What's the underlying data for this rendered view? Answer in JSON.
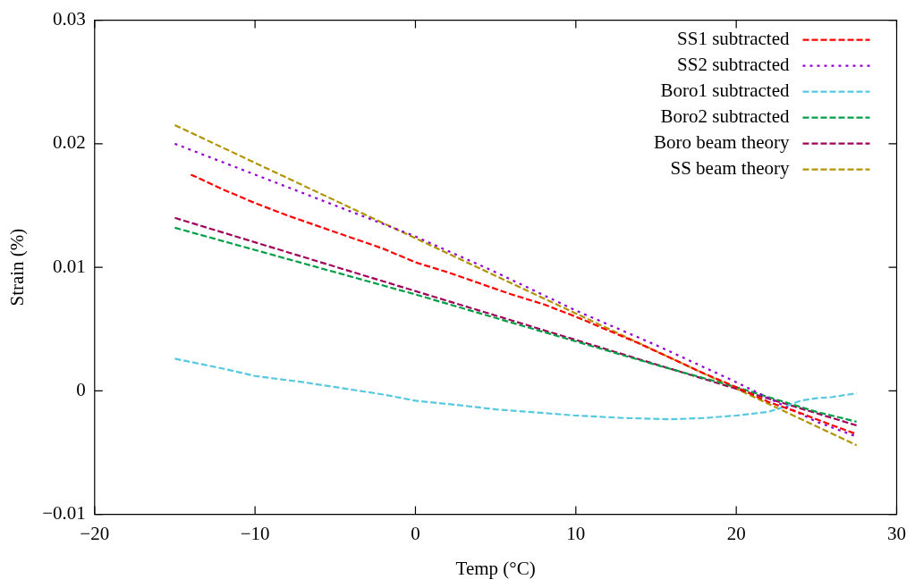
{
  "chart_data": {
    "type": "line",
    "xlabel": "Temp (°C)",
    "ylabel": "Strain (%)",
    "xlim": [
      -20,
      30
    ],
    "xticks": [
      -20,
      -10,
      0,
      10,
      20,
      30
    ],
    "ylim": [
      -0.01,
      0.03
    ],
    "yticks": [
      -0.01,
      0,
      0.01,
      0.02,
      0.03
    ],
    "grid": false,
    "legend": "top right",
    "marker": "none",
    "series": [
      {
        "name": "SS1 subtracted",
        "color": "#ff0000",
        "line_style": "dashed",
        "x": [
          -14,
          -12,
          -10,
          -8,
          -6,
          -4,
          -2,
          0,
          2,
          4,
          6,
          8,
          10,
          12,
          14,
          16,
          18,
          20,
          22,
          24,
          26,
          27.5
        ],
        "values": [
          0.0175,
          0.0163,
          0.0152,
          0.0142,
          0.0133,
          0.0124,
          0.0115,
          0.0104,
          0.0096,
          0.0087,
          0.0078,
          0.007,
          0.006,
          0.0049,
          0.0038,
          0.0026,
          0.0014,
          0.0003,
          -0.0009,
          -0.0018,
          -0.0028,
          -0.0035
        ]
      },
      {
        "name": "SS2 subtracted",
        "color": "#9400d3",
        "line_style": "dotted",
        "x": [
          -15,
          -10,
          -5,
          0,
          5,
          10,
          15,
          20,
          25,
          27.5
        ],
        "values": [
          0.02,
          0.0175,
          0.015,
          0.0125,
          0.0096,
          0.0065,
          0.0037,
          0.0007,
          -0.0025,
          -0.0037
        ]
      },
      {
        "name": "Boro1 subtracted",
        "color": "#56c8e0",
        "line_style": "dashed",
        "x": [
          -15,
          -12,
          -10,
          -7,
          -5,
          -2,
          0,
          3,
          5,
          8,
          10,
          13,
          16,
          18,
          20,
          22,
          23,
          24,
          25,
          26,
          27,
          27.5
        ],
        "values": [
          0.0026,
          0.0018,
          0.0012,
          0.0007,
          0.0003,
          -0.0003,
          -0.0008,
          -0.0012,
          -0.0015,
          -0.0018,
          -0.002,
          -0.0022,
          -0.0023,
          -0.0022,
          -0.002,
          -0.0017,
          -0.0013,
          -0.0008,
          -0.0006,
          -0.0005,
          -0.0003,
          -0.0002
        ]
      },
      {
        "name": "Boro2 subtracted",
        "color": "#009e45",
        "line_style": "dashed",
        "x": [
          -15,
          -10,
          -5,
          0,
          5,
          10,
          15,
          20,
          25,
          27.5
        ],
        "values": [
          0.0132,
          0.0114,
          0.0096,
          0.0078,
          0.0059,
          0.004,
          0.0021,
          0.0003,
          -0.0017,
          -0.0025
        ]
      },
      {
        "name": "Boro beam theory",
        "color": "#a0005a",
        "line_style": "dashed",
        "x": [
          -15,
          27.5
        ],
        "values": [
          0.014,
          -0.0028
        ]
      },
      {
        "name": "SS beam theory",
        "color": "#b09400",
        "line_style": "dashed",
        "x": [
          -15,
          27.5
        ],
        "values": [
          0.0215,
          -0.0044
        ]
      }
    ]
  }
}
